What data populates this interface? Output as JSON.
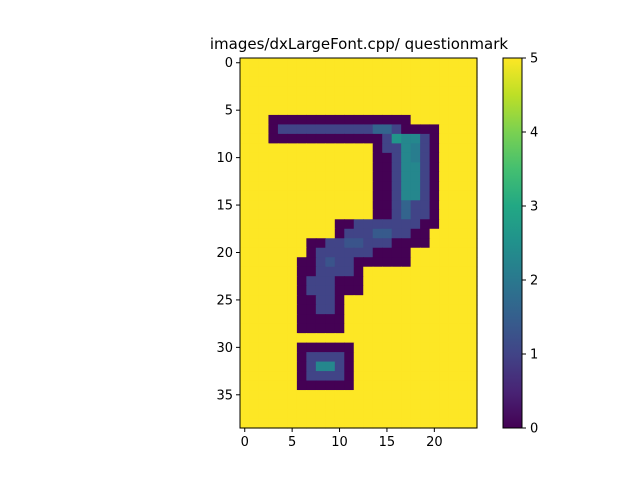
{
  "chart_data": {
    "type": "heatmap",
    "title": "images/dxLargeFont.cpp/ questionmark",
    "colormap": "viridis",
    "vmin": 0,
    "vmax": 5,
    "rows": 39,
    "cols": 25,
    "background_value": 5,
    "xticks": [
      0,
      5,
      10,
      15,
      20
    ],
    "yticks": [
      0,
      5,
      10,
      15,
      20,
      25,
      30,
      35
    ],
    "colorbar_ticks": [
      0,
      1,
      2,
      3,
      4,
      5
    ],
    "overlays": [
      {
        "r0": 6,
        "r1": 8,
        "c0": 3,
        "c1": 17,
        "v": 0
      },
      {
        "r0": 7,
        "r1": 10,
        "c0": 17,
        "c1": 20,
        "v": 0
      },
      {
        "r0": 9,
        "r1": 17,
        "c0": 14,
        "c1": 20,
        "v": 0
      },
      {
        "r0": 17,
        "r1": 19,
        "c0": 10,
        "c1": 19,
        "v": 0
      },
      {
        "r0": 19,
        "r1": 21,
        "c0": 7,
        "c1": 17,
        "v": 0
      },
      {
        "r0": 21,
        "r1": 24,
        "c0": 6,
        "c1": 12,
        "v": 0
      },
      {
        "r0": 23,
        "r1": 28,
        "c0": 6,
        "c1": 10,
        "v": 0
      },
      {
        "r0": 30,
        "r1": 34,
        "c0": 6,
        "c1": 11,
        "v": 0
      },
      {
        "r0": 7,
        "r1": 7,
        "c0": 4,
        "c1": 16,
        "v": 1
      },
      {
        "r0": 8,
        "r1": 9,
        "c0": 15,
        "c1": 19,
        "v": 1
      },
      {
        "r0": 10,
        "r1": 16,
        "c0": 16,
        "c1": 19,
        "v": 1
      },
      {
        "r0": 17,
        "r1": 17,
        "c0": 12,
        "c1": 18,
        "v": 1
      },
      {
        "r0": 18,
        "r1": 18,
        "c0": 11,
        "c1": 17,
        "v": 1
      },
      {
        "r0": 19,
        "r1": 19,
        "c0": 9,
        "c1": 15,
        "v": 1
      },
      {
        "r0": 20,
        "r1": 20,
        "c0": 8,
        "c1": 13,
        "v": 1
      },
      {
        "r0": 21,
        "r1": 22,
        "c0": 8,
        "c1": 11,
        "v": 1
      },
      {
        "r0": 23,
        "r1": 24,
        "c0": 7,
        "c1": 9,
        "v": 1
      },
      {
        "r0": 25,
        "r1": 26,
        "c0": 8,
        "c1": 9,
        "v": 1
      },
      {
        "r0": 31,
        "r1": 33,
        "c0": 7,
        "c1": 10,
        "v": 1
      },
      {
        "r0": 7,
        "r1": 7,
        "c0": 14,
        "c1": 15,
        "v": 1.6
      },
      {
        "r0": 8,
        "r1": 14,
        "c0": 17,
        "c1": 18,
        "v": 2.3
      },
      {
        "r0": 8,
        "r1": 8,
        "c0": 16,
        "c1": 16,
        "v": 2.6
      },
      {
        "r0": 9,
        "r1": 10,
        "c0": 18,
        "c1": 18,
        "v": 2.1
      },
      {
        "r0": 15,
        "r1": 16,
        "c0": 17,
        "c1": 17,
        "v": 1.6
      },
      {
        "r0": 18,
        "r1": 18,
        "c0": 14,
        "c1": 15,
        "v": 1.4
      },
      {
        "r0": 19,
        "r1": 19,
        "c0": 11,
        "c1": 12,
        "v": 1.3
      },
      {
        "r0": 21,
        "r1": 21,
        "c0": 9,
        "c1": 9,
        "v": 1.3
      },
      {
        "r0": 32,
        "r1": 32,
        "c0": 8,
        "c1": 9,
        "v": 2.3
      }
    ]
  }
}
